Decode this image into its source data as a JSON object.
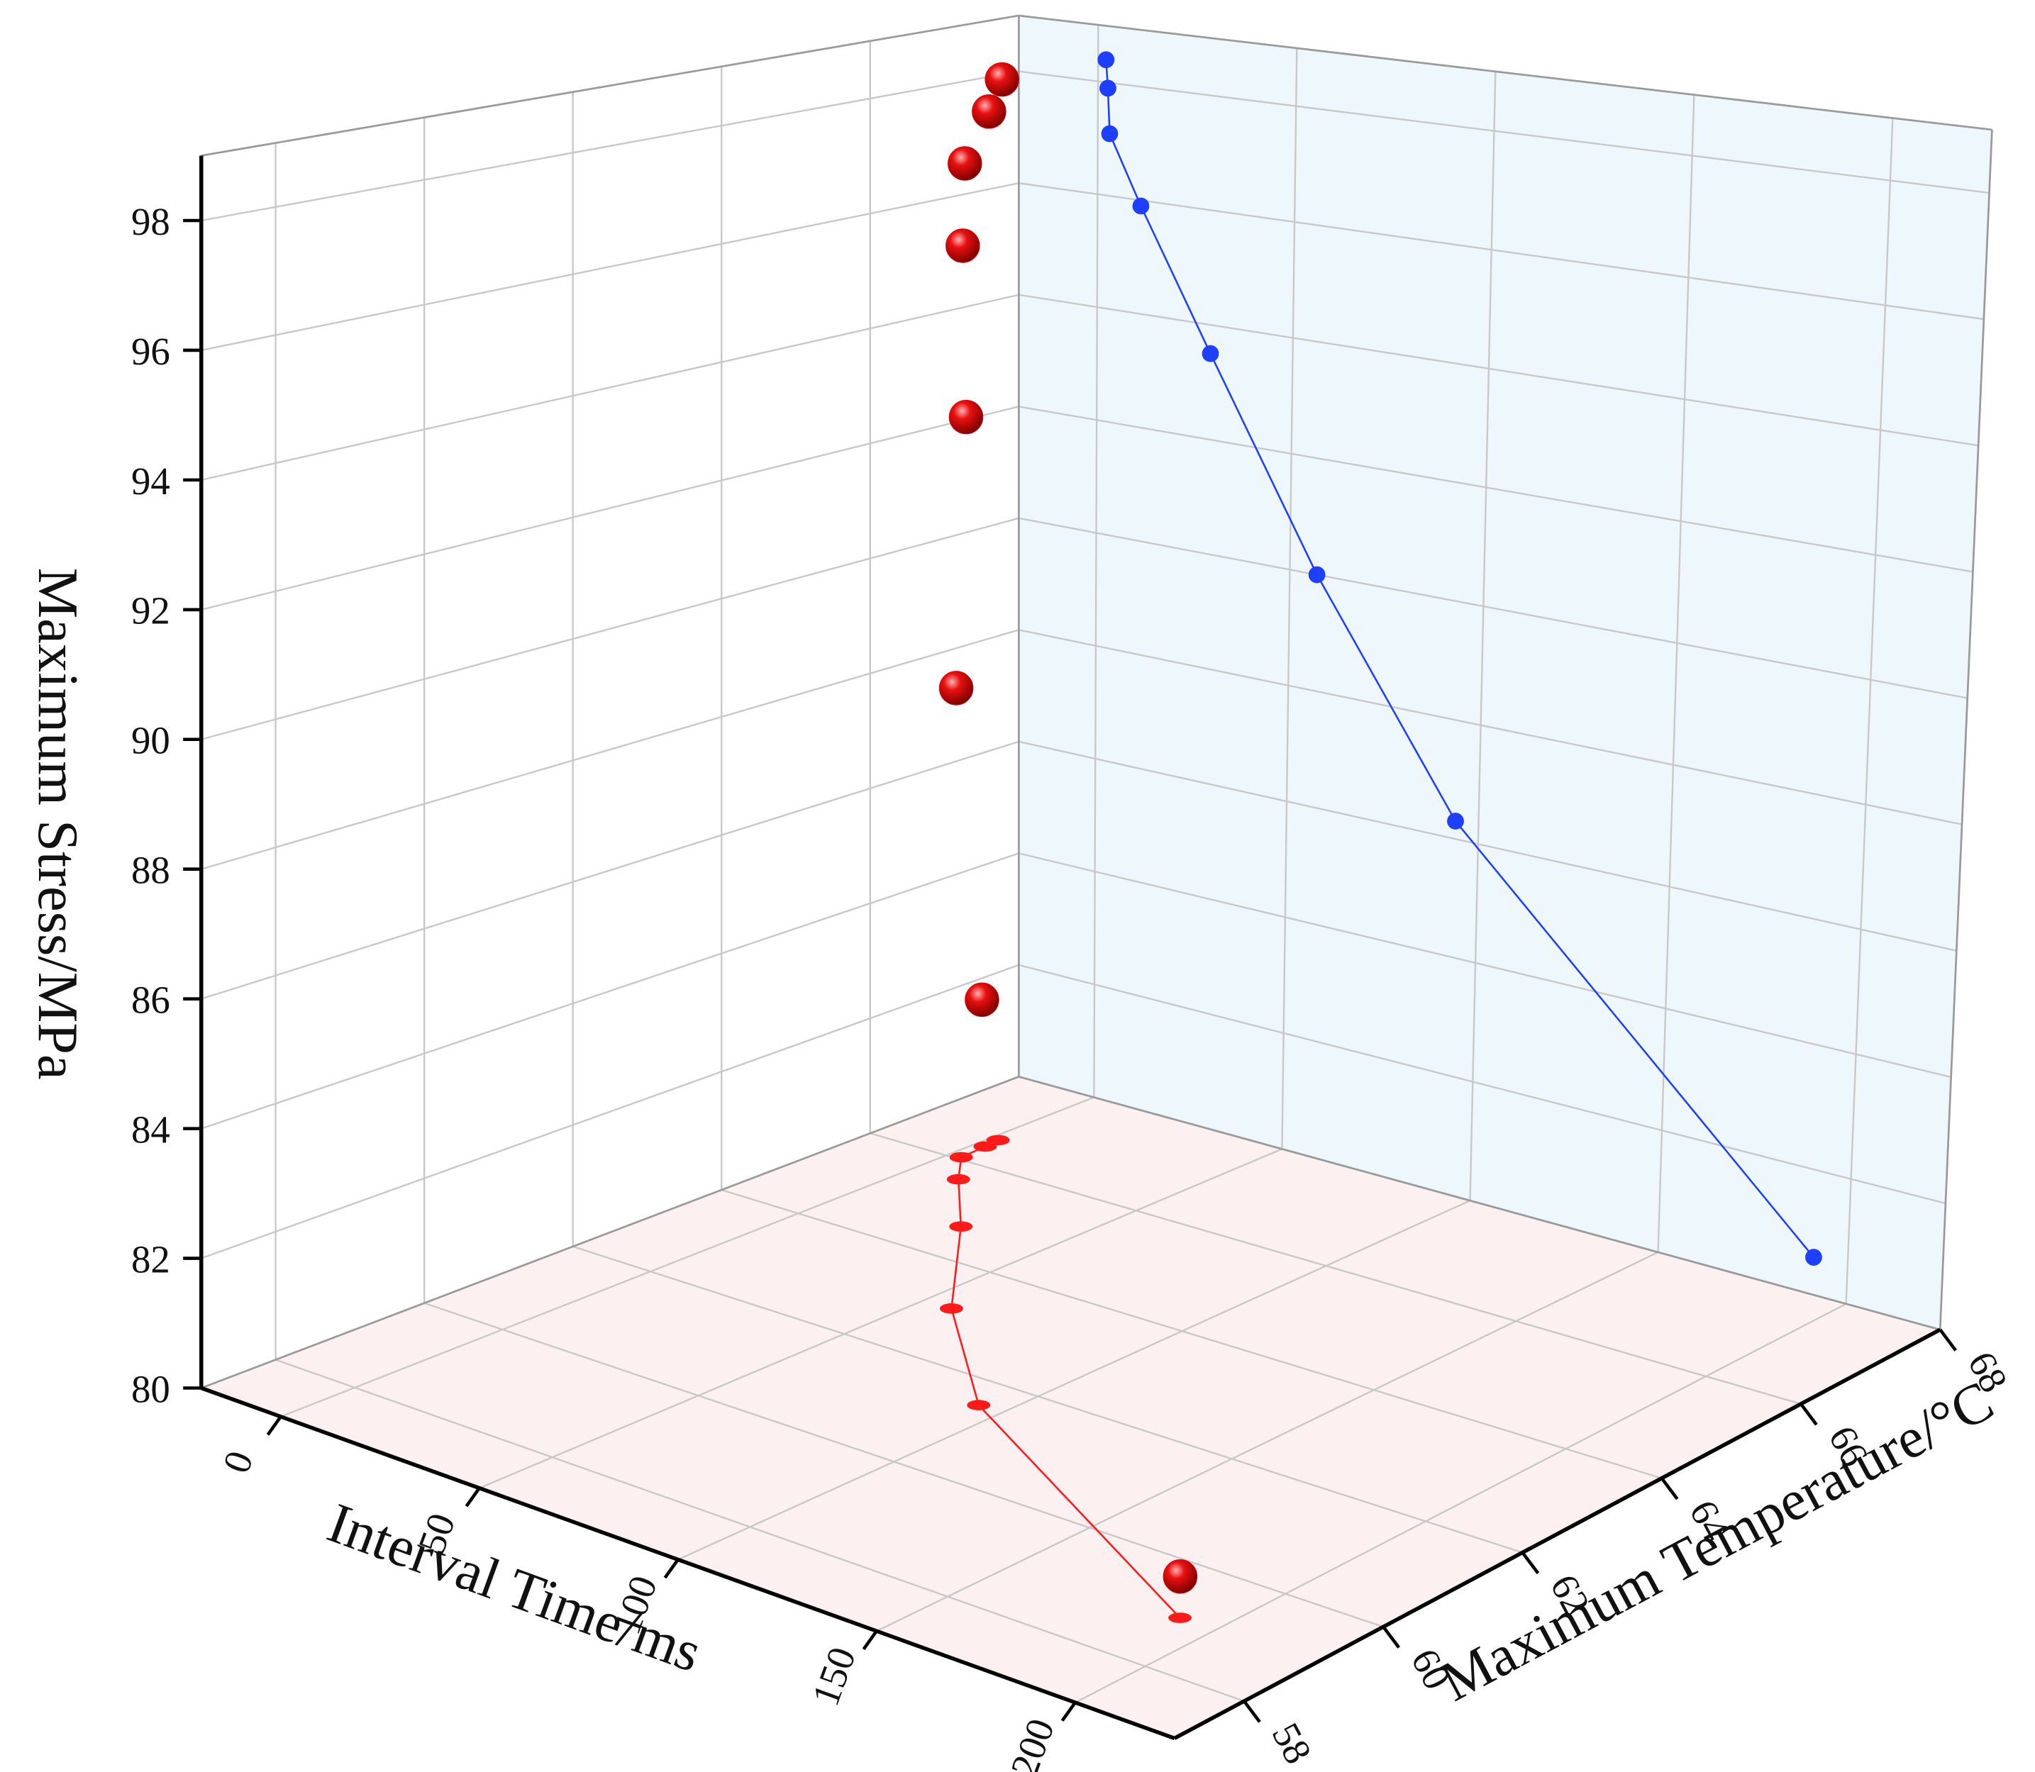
{
  "chart_data": {
    "type": "scatter3d",
    "x_label": "Interval Time/ms",
    "y_label": "Maximum Temperature/°C",
    "z_label": "Maximum Stress/MPa",
    "x": [
      2,
      2.5,
      3,
      11,
      29,
      57,
      94,
      191
    ],
    "y": [
      66.6,
      66.4,
      66.05,
      65.6,
      64.7,
      63.1,
      61.5,
      59.0
    ],
    "z": [
      98.4,
      97.9,
      97.1,
      95.9,
      93.5,
      90.0,
      86.3,
      80.6
    ],
    "color": "#e00000",
    "wall_projection_color": "#1f3fff",
    "floor_projection_color": "#ff1a1a",
    "xlim": [
      -20,
      225
    ],
    "ylim": [
      57,
      68
    ],
    "zlim": [
      80,
      99
    ],
    "xticks": [
      0,
      50,
      100,
      150,
      200
    ],
    "yticks": [
      58,
      60,
      62,
      64,
      66,
      68
    ],
    "zticks": [
      80,
      82,
      84,
      86,
      88,
      90,
      92,
      94,
      96,
      98
    ],
    "grid": true,
    "floor_color": "#fdf0f0",
    "wall_color": "#eef8fc"
  }
}
